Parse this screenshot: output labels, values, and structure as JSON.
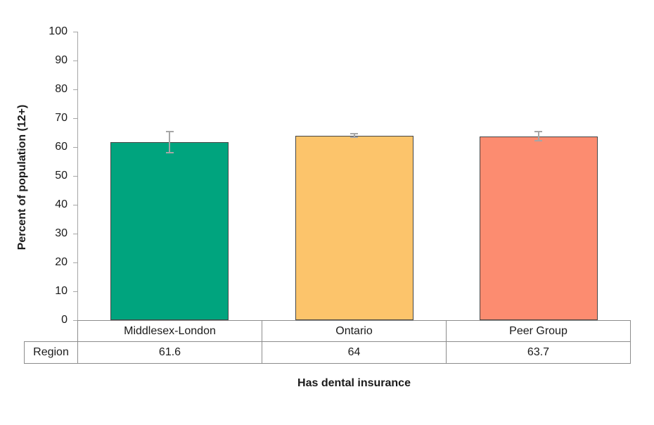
{
  "chart_data": {
    "type": "bar",
    "title": "",
    "xlabel": "Has dental insurance",
    "ylabel": "Percent of population (12+)",
    "categories": [
      "Middlesex-London",
      "Ontario",
      "Peer Group"
    ],
    "values": [
      61.6,
      64,
      63.7
    ],
    "error_bars": [
      3.9,
      0.8,
      1.8
    ],
    "bar_colors": [
      "#00A47E",
      "#FCC46B",
      "#FC8C70"
    ],
    "bar_border_color": "#454545",
    "error_bar_color": "#A6A6A6",
    "ylim": [
      0,
      100
    ],
    "yticks": [
      0,
      10,
      20,
      30,
      40,
      50,
      60,
      70,
      80,
      90,
      100
    ],
    "grid": false,
    "legend": false,
    "background": "#FFFFFF",
    "table": {
      "row_label": "Region",
      "row_values": [
        "61.6",
        "64",
        "63.7"
      ]
    }
  }
}
